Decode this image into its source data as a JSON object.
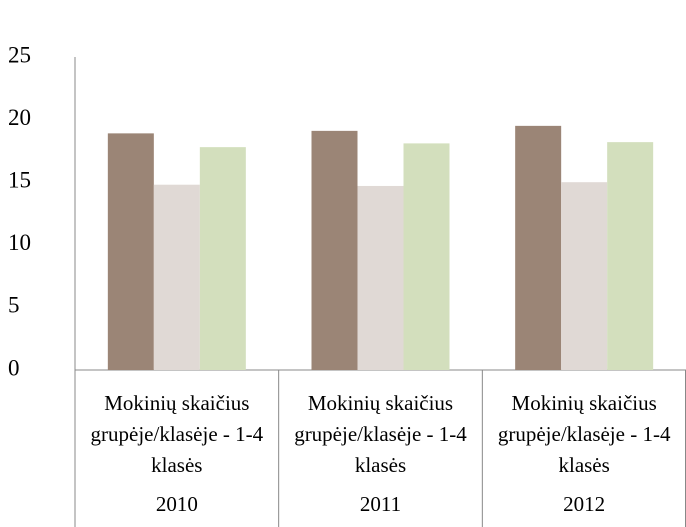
{
  "chart_data": {
    "type": "bar",
    "categories": [
      "Mokinių skaičius grupėje/klasėje - 1-4 klasės",
      "Mokinių skaičius grupėje/klasėje - 1-4 klasės",
      "Mokinių skaičius grupėje/klasėje - 1-4 klasės"
    ],
    "groups": [
      "2010",
      "2011",
      "2012"
    ],
    "series": [
      {
        "color": "#9b8576",
        "values": [
          18.9,
          19.1,
          19.5
        ]
      },
      {
        "color": "#e0d9d5",
        "values": [
          14.8,
          14.7,
          15.0
        ]
      },
      {
        "color": "#d3dfbd",
        "values": [
          17.8,
          18.1,
          18.2
        ]
      }
    ],
    "ylim": [
      0,
      25
    ],
    "yticks": [
      0,
      5,
      10,
      15,
      20,
      25
    ]
  }
}
